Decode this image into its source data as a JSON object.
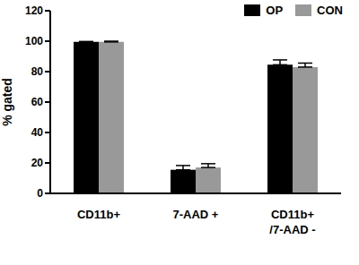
{
  "chart_data": {
    "type": "bar",
    "categories": [
      "CD11b+",
      "7-AAD +",
      "CD11b+\n/7-AAD -"
    ],
    "series": [
      {
        "name": "OP",
        "color": "#000000",
        "values": [
          99.5,
          15.5,
          84.5
        ],
        "errors": [
          0.3,
          2.8,
          3.2
        ]
      },
      {
        "name": "CON",
        "color": "#999999",
        "values": [
          99.5,
          17,
          83
        ],
        "errors": [
          0.5,
          2.5,
          2.6
        ]
      }
    ],
    "y_label": "% gated",
    "ylim": [
      0,
      120
    ],
    "yticks": [
      0,
      20,
      40,
      60,
      80,
      100,
      120
    ],
    "grid": false,
    "legend": "upper right"
  }
}
